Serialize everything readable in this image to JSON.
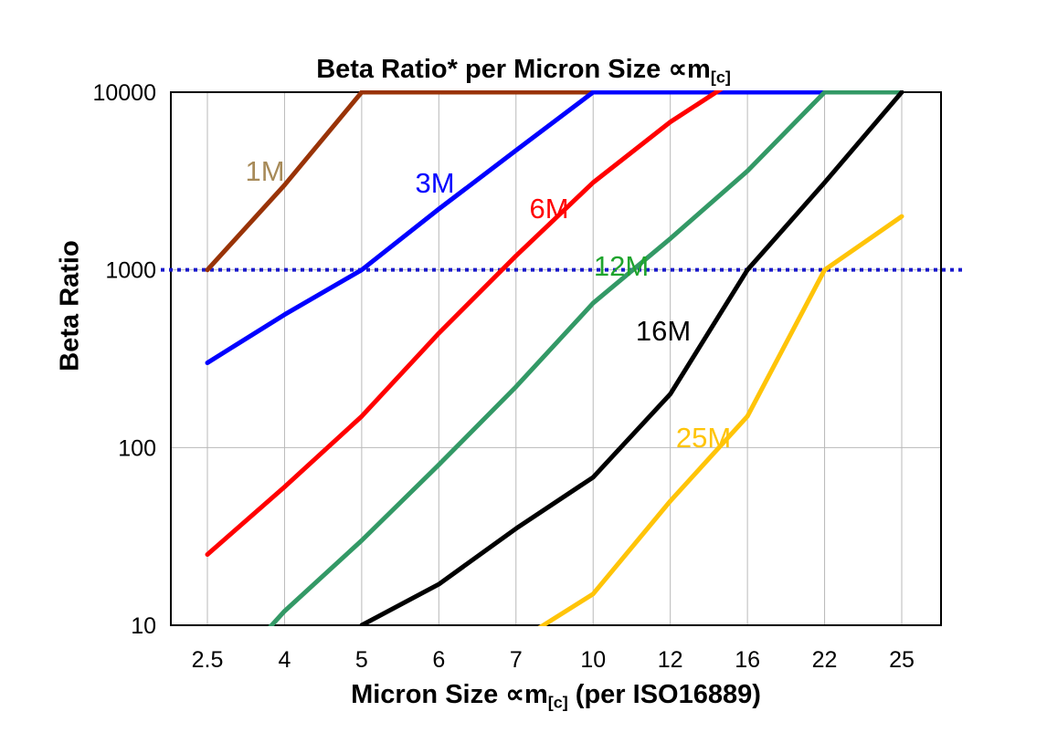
{
  "title": {
    "part1": "Beta Ratio* per Micron Size ∝m",
    "sub": "[c]"
  },
  "y_axis": {
    "title": "Beta Ratio",
    "scale": "log",
    "tick_labels": [
      "10000",
      "1000",
      "100",
      "10"
    ],
    "tick_values": [
      10000,
      1000,
      100,
      10
    ]
  },
  "x_axis": {
    "title_part1": "Micron Size ∝m",
    "title_sub": "[c]",
    "title_part2": " (per ISO16889)",
    "tick_labels": [
      "2.5",
      "4",
      "5",
      "6",
      "7",
      "10",
      "12",
      "16",
      "22",
      "25"
    ]
  },
  "reference_line": {
    "value": 1000,
    "style": "dotted",
    "color": "#1A1ACC"
  },
  "colors": {
    "background": "#FFFFFF",
    "gridline": "#B9B9B9",
    "plot_border": "#000000"
  },
  "chart_data": {
    "type": "line",
    "x_scale": "categorical",
    "y_scale": "log",
    "ylim": [
      10,
      10000
    ],
    "grid": true,
    "legend": "inline-labels",
    "categories": [
      2.5,
      4,
      5,
      6,
      7,
      10,
      12,
      16,
      22,
      25
    ],
    "note": "values above 10000 exceed the axis maximum and are clipped at the plot top; values below 10 are clipped at the plot bottom",
    "series": [
      {
        "name": "1M",
        "color": "#993307",
        "label_color": "#A78A58",
        "values": [
          1000,
          3000,
          10000,
          10000,
          10000,
          10000,
          null,
          null,
          null,
          null
        ],
        "label_pos": [
          290,
          187
        ]
      },
      {
        "name": "3M",
        "color": "#0000FF",
        "label_color": "#0000FF",
        "values": [
          300,
          560,
          1000,
          2200,
          4700,
          10000,
          10000,
          10000,
          10000,
          null
        ],
        "label_pos": [
          476,
          200
        ]
      },
      {
        "name": "6M",
        "color": "#FF0000",
        "label_color": "#FF0000",
        "values": [
          25,
          60,
          150,
          440,
          1200,
          3100,
          6800,
          13000,
          null,
          null
        ],
        "label_pos": [
          601,
          228
        ]
      },
      {
        "name": "12M",
        "color": "#339966",
        "label_color": "#1FA42D",
        "values": [
          4,
          12,
          30,
          80,
          220,
          650,
          1500,
          3600,
          10000,
          10000
        ],
        "label_pos": [
          680,
          291
        ]
      },
      {
        "name": "16M",
        "color": "#000000",
        "label_color": "#000000",
        "values": [
          null,
          null,
          10,
          17,
          35,
          68,
          200,
          1000,
          3100,
          10000
        ],
        "label_pos": [
          726,
          362
        ]
      },
      {
        "name": "25M",
        "color": "#FFC408",
        "label_color": "#FFC408",
        "values": [
          null,
          null,
          null,
          null,
          8,
          15,
          50,
          150,
          1000,
          2000
        ],
        "label_pos": [
          770,
          479
        ]
      }
    ]
  }
}
